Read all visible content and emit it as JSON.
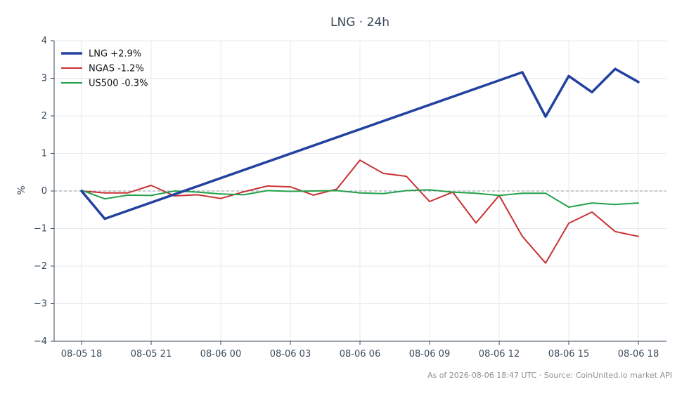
{
  "chart_data": {
    "type": "line",
    "title": "LNG · 24h",
    "xlabel": "",
    "ylabel": "%",
    "x": [
      "08-05 18",
      "08-05 19",
      "08-05 20",
      "08-05 21",
      "08-05 22",
      "08-05 23",
      "08-06 00",
      "08-06 01",
      "08-06 02",
      "08-06 03",
      "08-06 04",
      "08-06 05",
      "08-06 06",
      "08-06 07",
      "08-06 08",
      "08-06 09",
      "08-06 10",
      "08-06 11",
      "08-06 12",
      "08-06 13",
      "08-06 14",
      "08-06 15",
      "08-06 16",
      "08-06 17",
      "08-06 18"
    ],
    "xticks": [
      "08-05 18",
      "08-05 21",
      "08-06 00",
      "08-06 03",
      "08-06 06",
      "08-06 09",
      "08-06 12",
      "08-06 15",
      "08-06 18"
    ],
    "ylim": [
      -4,
      4
    ],
    "yticks": [
      4,
      3,
      2,
      1,
      0,
      -1,
      -2,
      -3,
      -4
    ],
    "ytick_labels": [
      "4",
      "3",
      "2",
      "1",
      "0",
      "−1",
      "−2",
      "−3",
      "−4"
    ],
    "grid": true,
    "zero_line": true,
    "legend_position": "top-left",
    "series": [
      {
        "name": "LNG +2.9%",
        "color": "#2341a0",
        "values": [
          0.0,
          -0.74,
          null,
          null,
          null,
          null,
          null,
          null,
          null,
          null,
          null,
          null,
          null,
          null,
          null,
          null,
          null,
          null,
          null,
          3.16,
          1.98,
          3.06,
          2.63,
          3.25,
          2.9
        ]
      },
      {
        "name": "NGAS -1.2%",
        "color": "#c83232",
        "values": [
          0.0,
          -0.05,
          -0.05,
          0.15,
          -0.13,
          -0.1,
          -0.2,
          -0.02,
          0.13,
          0.11,
          -0.11,
          0.05,
          0.82,
          0.47,
          0.39,
          -0.28,
          -0.03,
          -0.85,
          -0.12,
          -1.21,
          -1.92,
          -0.86,
          -0.56,
          -1.08,
          -1.21
        ]
      },
      {
        "name": "US500 -0.3%",
        "color": "#24a04a",
        "values": [
          0.02,
          -0.21,
          -0.11,
          -0.12,
          0.0,
          -0.03,
          -0.08,
          -0.1,
          0.01,
          -0.01,
          0.0,
          0.01,
          -0.05,
          -0.07,
          0.01,
          0.03,
          -0.03,
          -0.06,
          -0.12,
          -0.06,
          -0.06,
          -0.43,
          -0.32,
          -0.36,
          -0.32
        ]
      }
    ]
  },
  "footer": "As of 2026-08-06 18:47 UTC · Source: CoinUnited.io market API"
}
